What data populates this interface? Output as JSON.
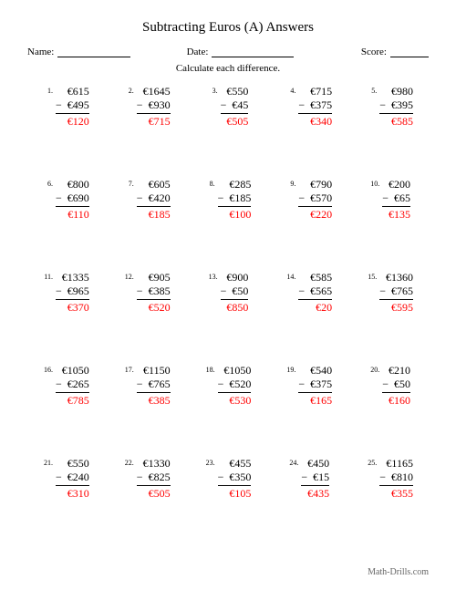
{
  "title": "Subtracting Euros (A) Answers",
  "name_label": "Name:",
  "date_label": "Date:",
  "score_label": "Score:",
  "instruction": "Calculate each difference.",
  "footer": "Math-Drills.com",
  "currency": "€",
  "colors": {
    "answer": "#ff0000",
    "text": "#000000",
    "background": "#ffffff",
    "footer": "#666666"
  },
  "problems": [
    {
      "n": "1.",
      "a": "€615",
      "b": "€495",
      "r": "€120"
    },
    {
      "n": "2.",
      "a": "€1645",
      "b": "€930",
      "r": "€715"
    },
    {
      "n": "3.",
      "a": "€550",
      "b": "€45",
      "r": "€505"
    },
    {
      "n": "4.",
      "a": "€715",
      "b": "€375",
      "r": "€340"
    },
    {
      "n": "5.",
      "a": "€980",
      "b": "€395",
      "r": "€585"
    },
    {
      "n": "6.",
      "a": "€800",
      "b": "€690",
      "r": "€110"
    },
    {
      "n": "7.",
      "a": "€605",
      "b": "€420",
      "r": "€185"
    },
    {
      "n": "8.",
      "a": "€285",
      "b": "€185",
      "r": "€100"
    },
    {
      "n": "9.",
      "a": "€790",
      "b": "€570",
      "r": "€220"
    },
    {
      "n": "10.",
      "a": "€200",
      "b": "€65",
      "r": "€135"
    },
    {
      "n": "11.",
      "a": "€1335",
      "b": "€965",
      "r": "€370"
    },
    {
      "n": "12.",
      "a": "€905",
      "b": "€385",
      "r": "€520"
    },
    {
      "n": "13.",
      "a": "€900",
      "b": "€50",
      "r": "€850"
    },
    {
      "n": "14.",
      "a": "€585",
      "b": "€565",
      "r": "€20"
    },
    {
      "n": "15.",
      "a": "€1360",
      "b": "€765",
      "r": "€595"
    },
    {
      "n": "16.",
      "a": "€1050",
      "b": "€265",
      "r": "€785"
    },
    {
      "n": "17.",
      "a": "€1150",
      "b": "€765",
      "r": "€385"
    },
    {
      "n": "18.",
      "a": "€1050",
      "b": "€520",
      "r": "€530"
    },
    {
      "n": "19.",
      "a": "€540",
      "b": "€375",
      "r": "€165"
    },
    {
      "n": "20.",
      "a": "€210",
      "b": "€50",
      "r": "€160"
    },
    {
      "n": "21.",
      "a": "€550",
      "b": "€240",
      "r": "€310"
    },
    {
      "n": "22.",
      "a": "€1330",
      "b": "€825",
      "r": "€505"
    },
    {
      "n": "23.",
      "a": "€455",
      "b": "€350",
      "r": "€105"
    },
    {
      "n": "24.",
      "a": "€450",
      "b": "€15",
      "r": "€435"
    },
    {
      "n": "25.",
      "a": "€1165",
      "b": "€810",
      "r": "€355"
    }
  ]
}
